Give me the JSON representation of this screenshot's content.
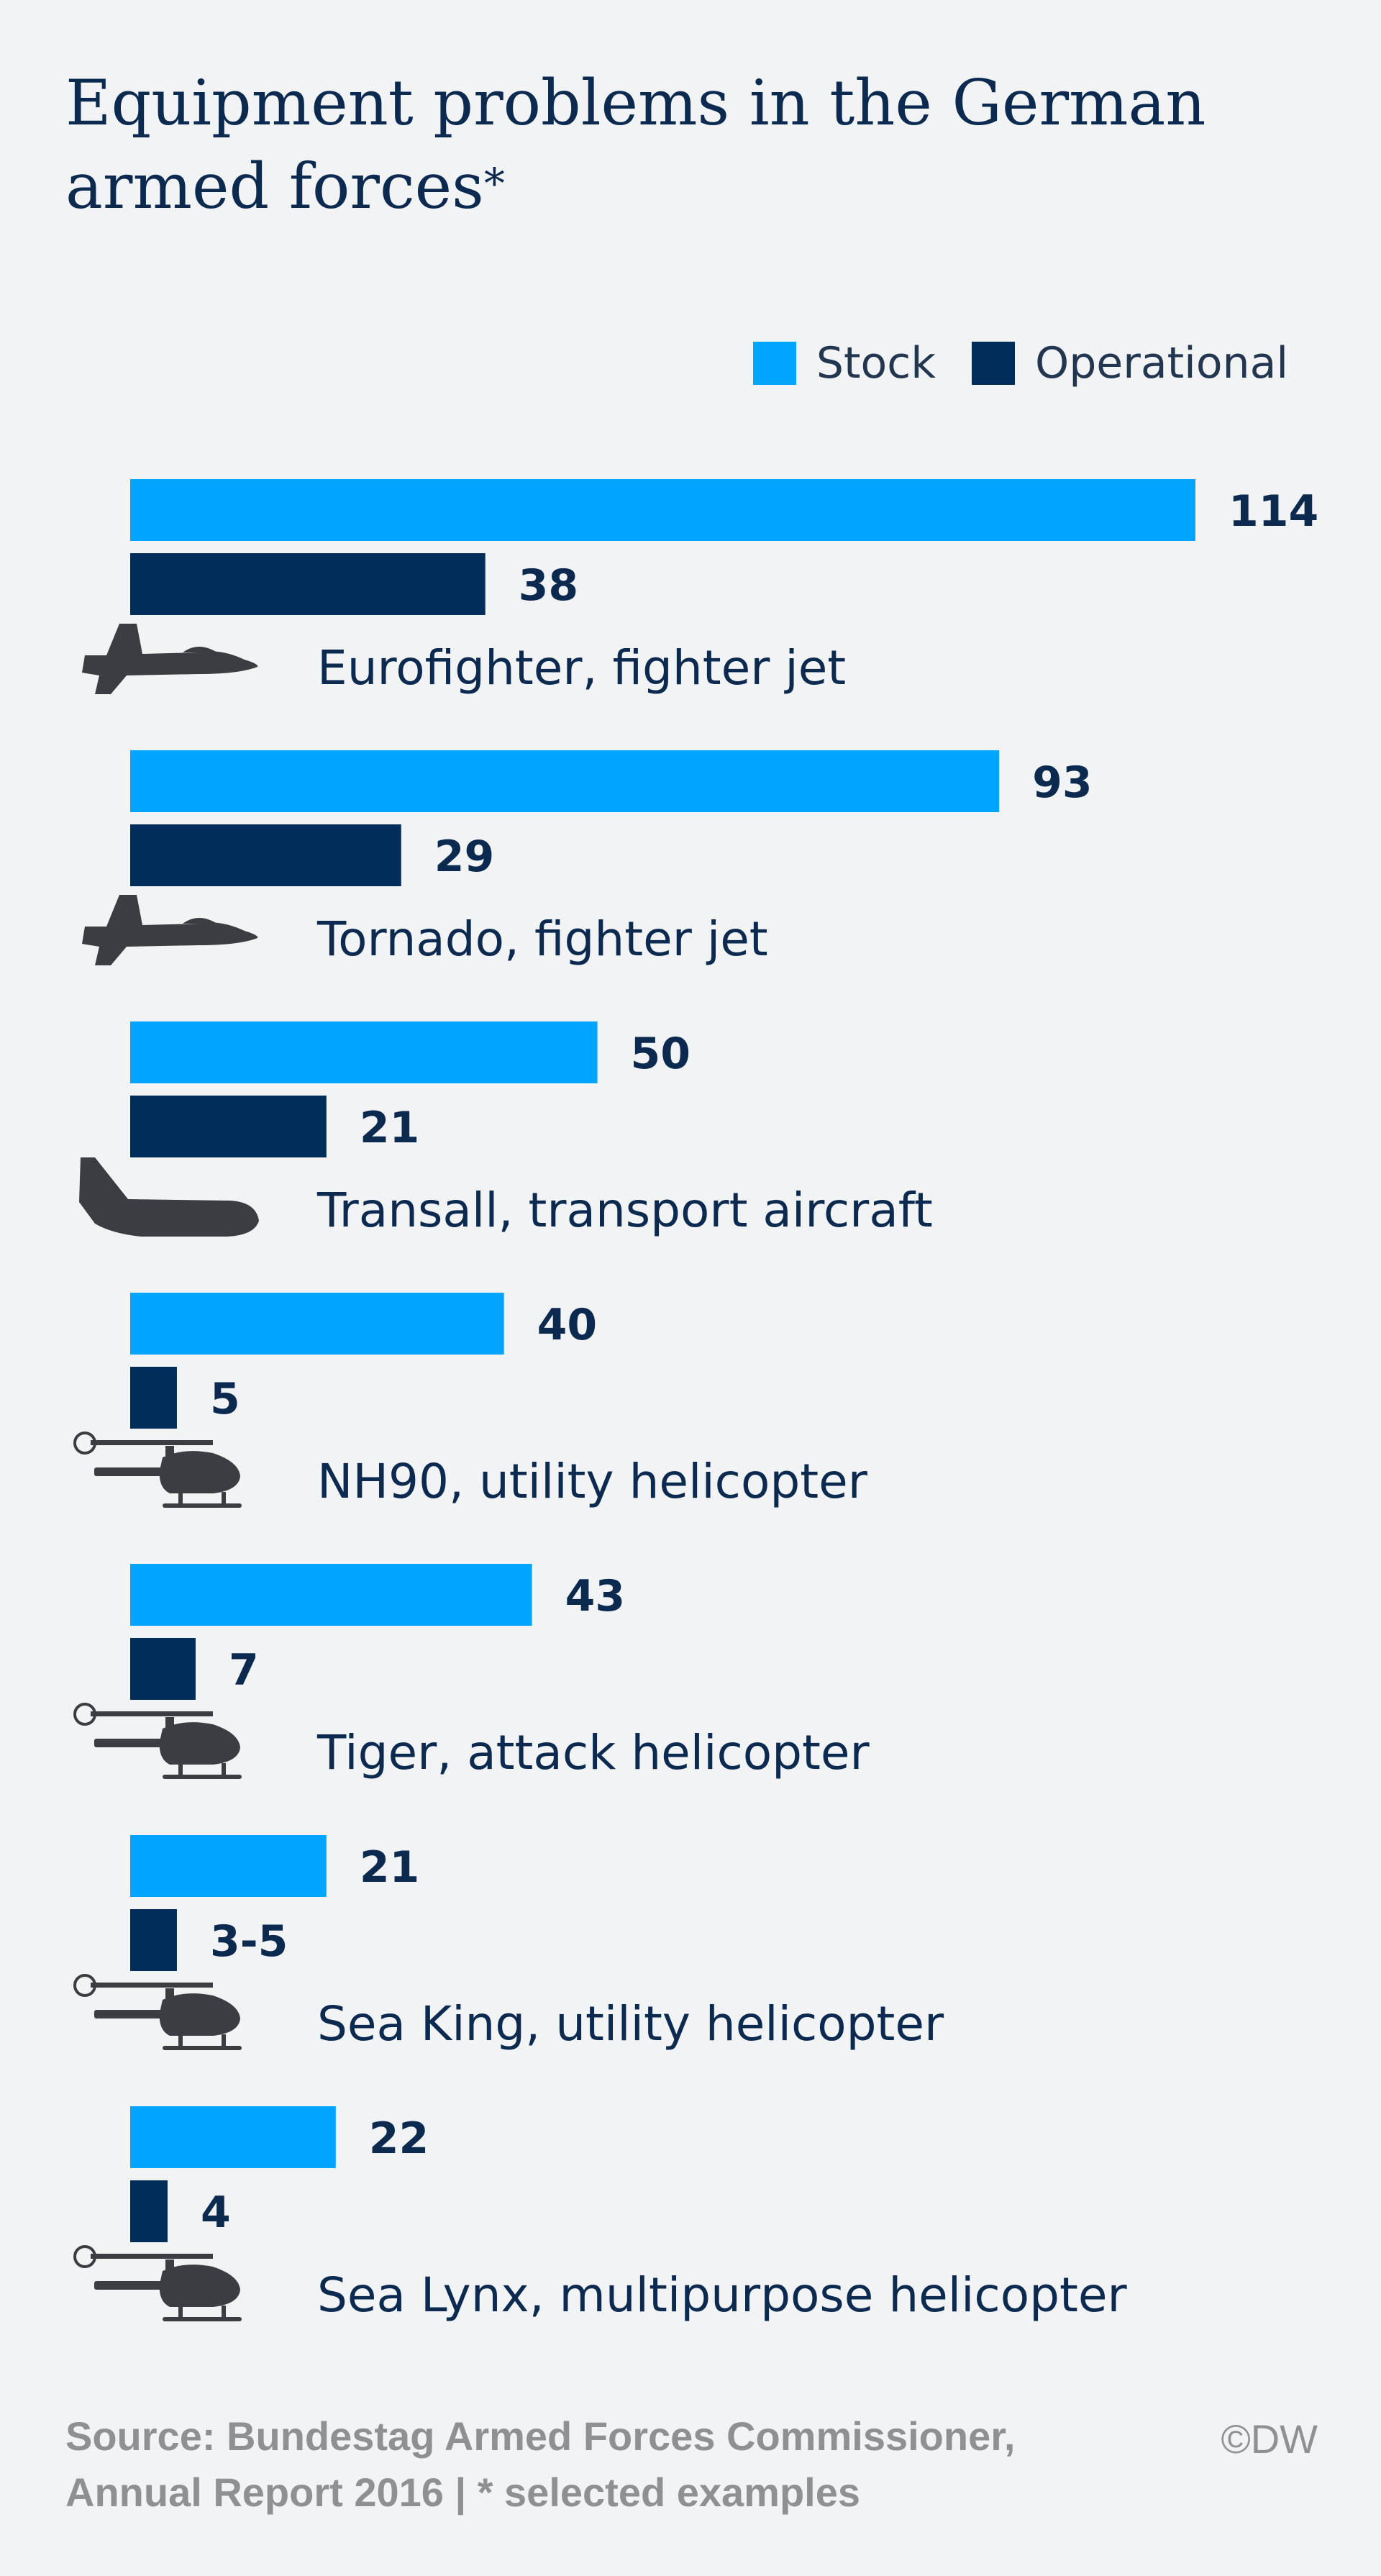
{
  "title": "Equipment problems in the German armed forces",
  "title_mark": "*",
  "legend": [
    {
      "label": "Stock",
      "color": "#00a5ff"
    },
    {
      "label": "Operational",
      "color": "#002d5a"
    }
  ],
  "chart_data": {
    "type": "bar",
    "orientation": "horizontal",
    "grid": false,
    "legend_position": "top-right",
    "xlim": [
      0,
      114
    ],
    "categories": [
      "Eurofighter, fighter jet",
      "Tornado, fighter jet",
      "Transall, transport aircraft",
      "NH90, utility helicopter",
      "Tiger, attack helicopter",
      "Sea King, utility helicopter",
      "Sea Lynx, multipurpose helicopter"
    ],
    "icons": [
      "fighter-jet-icon",
      "fighter-jet-icon",
      "transport-aircraft-icon",
      "helicopter-icon",
      "helicopter-icon",
      "helicopter-icon",
      "helicopter-icon"
    ],
    "series": [
      {
        "name": "Stock",
        "color": "#00a5ff",
        "values": [
          114,
          93,
          50,
          40,
          43,
          21,
          22
        ],
        "labels": [
          "114",
          "93",
          "50",
          "40",
          "43",
          "21",
          "22"
        ]
      },
      {
        "name": "Operational",
        "color": "#002d5a",
        "values": [
          38,
          29,
          21,
          5,
          7,
          5,
          4
        ],
        "labels": [
          "38",
          "29",
          "21",
          "5",
          "7",
          "3-5",
          "4"
        ]
      }
    ]
  },
  "footer": {
    "source_line1": "Source: Bundestag Armed Forces Commissioner,",
    "source_line2": "Annual Report 2016 | * selected examples",
    "credit": "©DW"
  }
}
